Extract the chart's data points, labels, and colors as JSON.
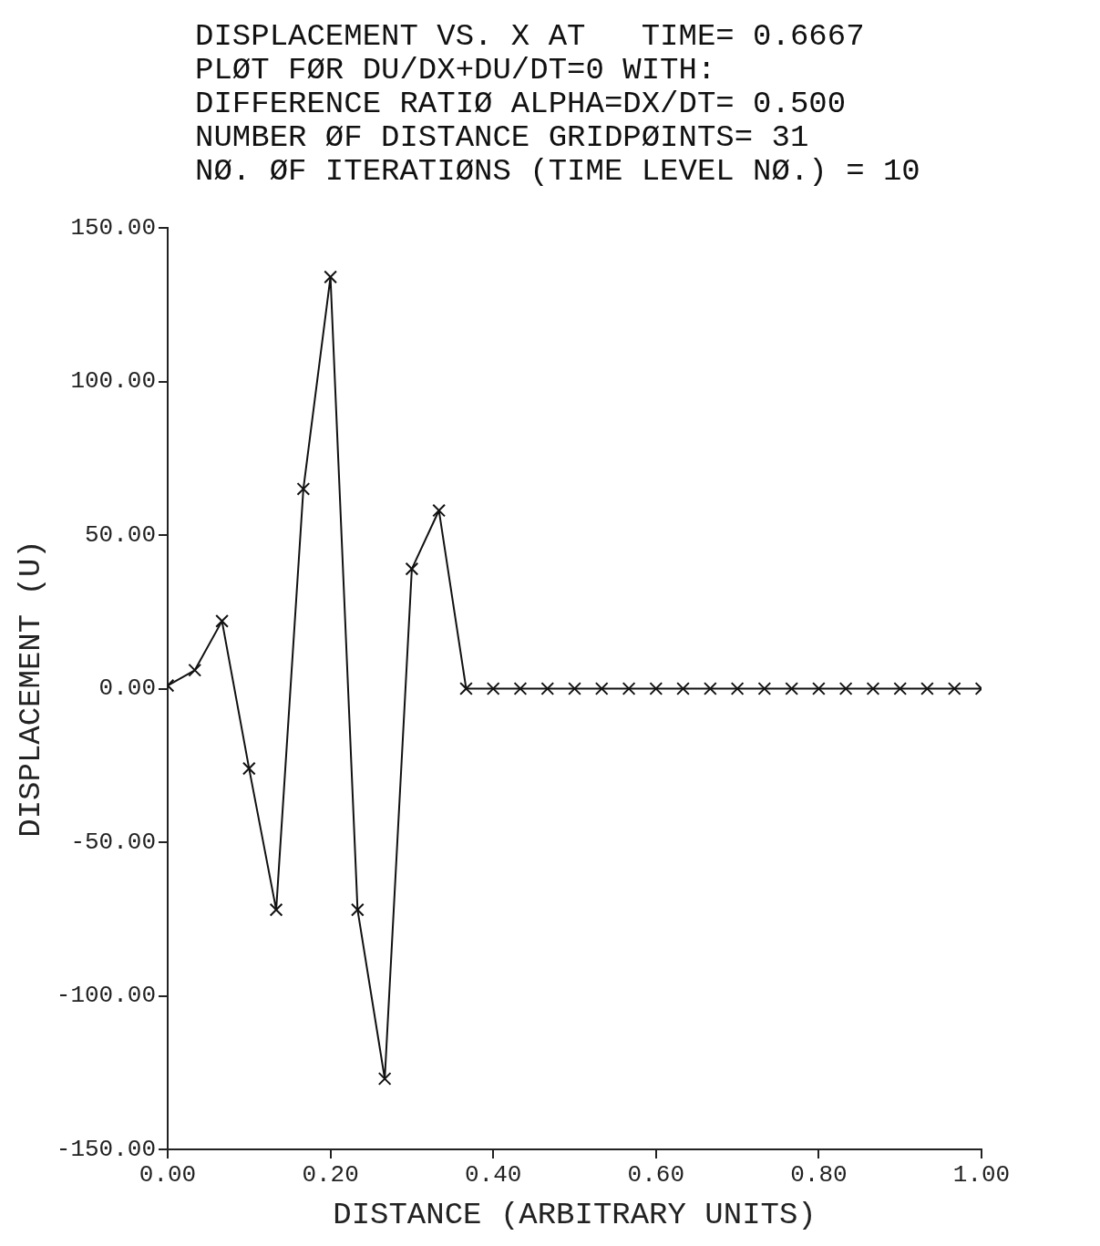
{
  "chart_data": {
    "type": "line",
    "title": "DISPLACEMENT VS. X AT   TIME= 0.6667",
    "subtitle": "PLØT FØR DU/DX+DU/DT=0 WITH:\nDIFFERENCE RATIØ ALPHA=DX/DT= 0.500\nNUMBER ØF DISTANCE GRIDPØINTS= 31\nNØ. ØF ITERATIØNS (TIME LEVEL NØ.) = 10",
    "xlabel": "DISTANCE (ARBITRARY UNITS)",
    "ylabel": "DISPLACEMENT (U)",
    "x": [
      0,
      0.0333,
      0.0667,
      0.1,
      0.1333,
      0.1667,
      0.2,
      0.2333,
      0.2667,
      0.3,
      0.3333,
      0.3667,
      0.4,
      0.4333,
      0.4667,
      0.5,
      0.5333,
      0.5667,
      0.6,
      0.6333,
      0.6667,
      0.7,
      0.7333,
      0.7667,
      0.8,
      0.8333,
      0.8667,
      0.9,
      0.9333,
      0.9667,
      1
    ],
    "series": [
      {
        "color": "#111111",
        "values": [
          1,
          6,
          22,
          -26,
          -72,
          65,
          134,
          -72,
          -127,
          39,
          58,
          0,
          0,
          0,
          0,
          0,
          0,
          0,
          0,
          0,
          0,
          0,
          0,
          0,
          0,
          0,
          0,
          0,
          0,
          0,
          0
        ]
      }
    ],
    "xlim": [
      0,
      1
    ],
    "xticks": [
      {
        "value": 0,
        "label": "0.00"
      },
      {
        "value": 0.2,
        "label": "0.20"
      },
      {
        "value": 0.4,
        "label": "0.40"
      },
      {
        "value": 0.6,
        "label": "0.60"
      },
      {
        "value": 0.8,
        "label": "0.80"
      },
      {
        "value": 1,
        "label": "1.00"
      }
    ],
    "ylim": [
      -150,
      150
    ],
    "yticks": [
      {
        "value": -150,
        "label": "-150.00"
      },
      {
        "value": -100,
        "label": "-100.00"
      },
      {
        "value": -50,
        "label": "-50.00"
      },
      {
        "value": 0,
        "label": "0.00"
      },
      {
        "value": 50,
        "label": "50.00"
      },
      {
        "value": 100,
        "label": "100.00"
      },
      {
        "value": 150,
        "label": "150.00"
      }
    ],
    "grid": false,
    "legend": false,
    "marker": "cross",
    "line_style": "solid"
  }
}
